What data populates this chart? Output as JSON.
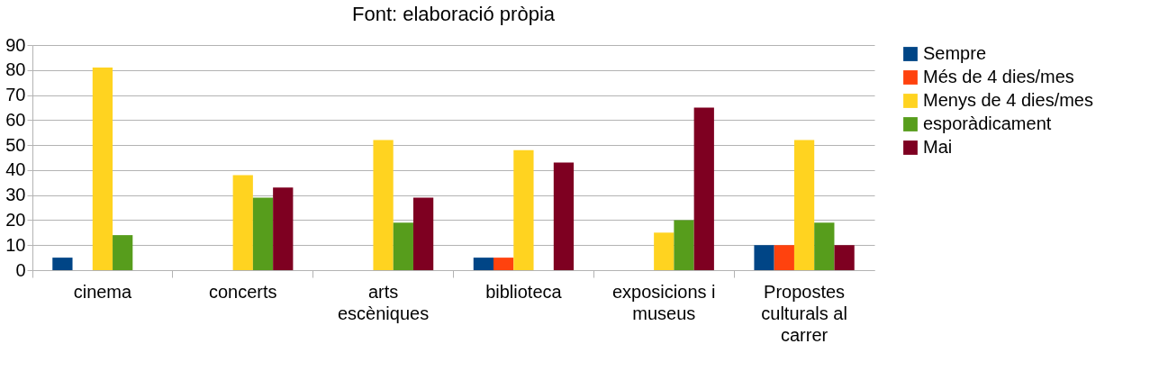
{
  "chart_data": {
    "type": "bar",
    "title": "Font: elaboració pròpia",
    "categories": [
      "cinema",
      "concerts",
      "arts escèniques",
      "biblioteca",
      "exposicions i museus",
      "Propostes culturals al carrer"
    ],
    "series": [
      {
        "name": "Sempre",
        "color": "#004586",
        "values": [
          5,
          0,
          0,
          5,
          0,
          10
        ]
      },
      {
        "name": "Més de 4 dies/mes",
        "color": "#ff420e",
        "values": [
          0,
          0,
          0,
          5,
          0,
          10
        ]
      },
      {
        "name": "Menys de 4 dies/mes",
        "color": "#ffd320",
        "values": [
          81,
          38,
          52,
          48,
          15,
          52
        ]
      },
      {
        "name": "esporàdicament",
        "color": "#579d1c",
        "values": [
          14,
          29,
          19,
          0,
          20,
          19
        ]
      },
      {
        "name": "Mai",
        "color": "#7e0021",
        "values": [
          0,
          33,
          29,
          43,
          65,
          10
        ]
      }
    ],
    "ylim": [
      0,
      90
    ],
    "yticks": [
      0,
      10,
      20,
      30,
      40,
      50,
      60,
      70,
      80,
      90
    ],
    "grid": "y",
    "legend": "right"
  }
}
